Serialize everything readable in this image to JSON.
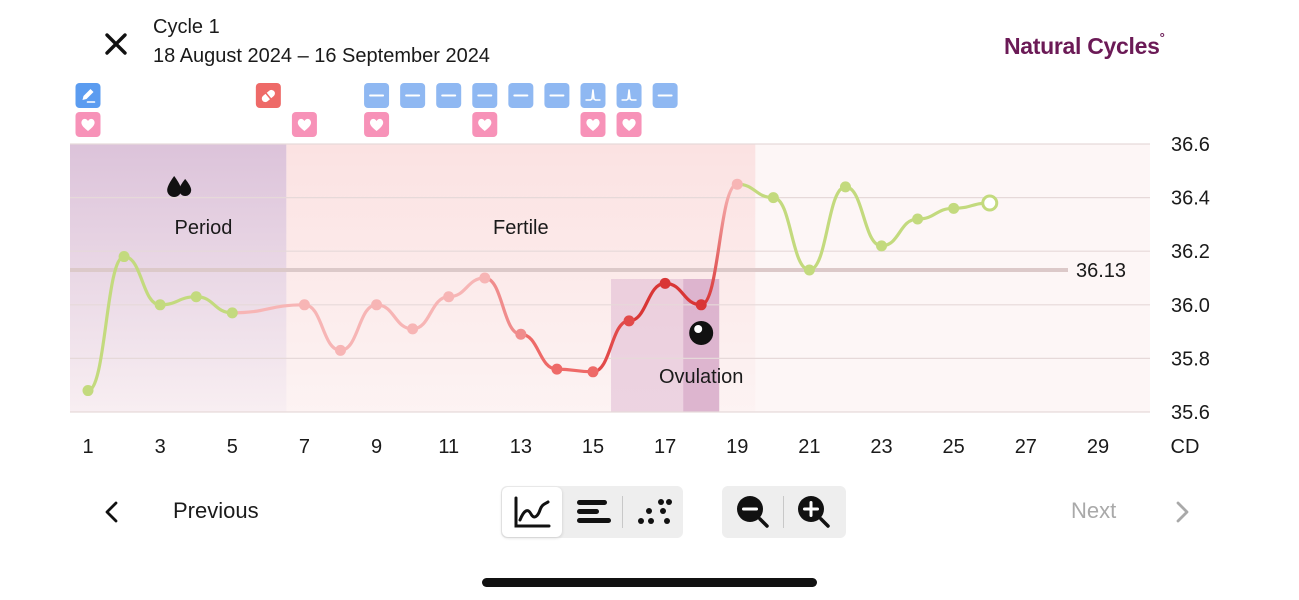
{
  "header": {
    "cycle_title": "Cycle 1",
    "cycle_dates": "18 August 2024 – 16 September 2024",
    "brand_name": "Natural Cycles",
    "brand_mark": "°",
    "close_icon": "close-icon"
  },
  "chart_data": {
    "type": "line",
    "x_label": "CD",
    "x_ticks": [
      "1",
      "3",
      "5",
      "7",
      "9",
      "11",
      "13",
      "15",
      "17",
      "19",
      "21",
      "23",
      "25",
      "27",
      "29"
    ],
    "y_ticks": [
      "36.6",
      "36.4",
      "36.2",
      "36.0",
      "35.8",
      "35.6"
    ],
    "ylim": [
      35.6,
      36.6
    ],
    "xlim": [
      1,
      30
    ],
    "cover_line": {
      "value": 36.13,
      "label": "36.13"
    },
    "phases": [
      {
        "name": "period",
        "label": "Period",
        "from": 1,
        "to": 6.5,
        "color": "#dcc3da"
      },
      {
        "name": "fertile",
        "label": "Fertile",
        "from": 6.5,
        "to": 19.5,
        "color": "#fbe2e2"
      },
      {
        "name": "ovulation",
        "label": "Ovulation",
        "from": 17.5,
        "to": 18.5,
        "color": "#d9aecb"
      }
    ],
    "points": [
      {
        "cd": 1,
        "temp": 35.68,
        "color": "#c3da7e"
      },
      {
        "cd": 2,
        "temp": 36.18,
        "color": "#c3da7e"
      },
      {
        "cd": 3,
        "temp": 36.0,
        "color": "#c3da7e"
      },
      {
        "cd": 4,
        "temp": 36.03,
        "color": "#c3da7e"
      },
      {
        "cd": 5,
        "temp": 35.97,
        "color": "#c3da7e"
      },
      {
        "cd": 7,
        "temp": 36.0,
        "color": "#f7b5b5"
      },
      {
        "cd": 8,
        "temp": 35.83,
        "color": "#f7b5b5"
      },
      {
        "cd": 9,
        "temp": 36.0,
        "color": "#f7b5b5"
      },
      {
        "cd": 10,
        "temp": 35.91,
        "color": "#f7b5b5"
      },
      {
        "cd": 11,
        "temp": 36.03,
        "color": "#f7b5b5"
      },
      {
        "cd": 12,
        "temp": 36.1,
        "color": "#f7b5b5"
      },
      {
        "cd": 13,
        "temp": 35.89,
        "color": "#f08c8c"
      },
      {
        "cd": 14,
        "temp": 35.76,
        "color": "#ee6a68"
      },
      {
        "cd": 15,
        "temp": 35.75,
        "color": "#ee6a68"
      },
      {
        "cd": 16,
        "temp": 35.94,
        "color": "#e24a4a"
      },
      {
        "cd": 17,
        "temp": 36.08,
        "color": "#d93636"
      },
      {
        "cd": 18,
        "temp": 36.0,
        "color": "#d93636"
      },
      {
        "cd": 19,
        "temp": 36.45,
        "color": "#f7b5b5"
      },
      {
        "cd": 20,
        "temp": 36.4,
        "color": "#c3da7e"
      },
      {
        "cd": 21,
        "temp": 36.13,
        "color": "#c3da7e"
      },
      {
        "cd": 22,
        "temp": 36.44,
        "color": "#c3da7e"
      },
      {
        "cd": 23,
        "temp": 36.22,
        "color": "#c3da7e"
      },
      {
        "cd": 24,
        "temp": 36.32,
        "color": "#c3da7e"
      },
      {
        "cd": 25,
        "temp": 36.36,
        "color": "#c3da7e"
      },
      {
        "cd": 26,
        "temp": 36.38,
        "color": "#c3da7e",
        "hollow": true
      }
    ],
    "markers": {
      "period_icon": {
        "name": "drops-icon",
        "cd": 3.5
      },
      "ovulation_icon": {
        "name": "ovulation-egg-icon",
        "cd": 18
      }
    }
  },
  "tags": {
    "row1": [
      {
        "cd": 1,
        "icon": "pen-icon",
        "color": "#5b9cf0"
      },
      {
        "cd": 6,
        "icon": "pill-icon",
        "color": "#ee6a68"
      },
      {
        "cd": 9,
        "icon": "lh-test-negative-icon",
        "color": "#8fb8f2"
      },
      {
        "cd": 10,
        "icon": "lh-test-negative-icon",
        "color": "#8fb8f2"
      },
      {
        "cd": 11,
        "icon": "lh-test-negative-icon",
        "color": "#8fb8f2"
      },
      {
        "cd": 12,
        "icon": "lh-test-negative-icon",
        "color": "#8fb8f2"
      },
      {
        "cd": 13,
        "icon": "lh-test-negative-icon",
        "color": "#8fb8f2"
      },
      {
        "cd": 14,
        "icon": "lh-test-negative-icon",
        "color": "#8fb8f2"
      },
      {
        "cd": 15,
        "icon": "lh-test-positive-icon",
        "color": "#8fb8f2"
      },
      {
        "cd": 16,
        "icon": "lh-test-positive-icon",
        "color": "#8fb8f2"
      },
      {
        "cd": 17,
        "icon": "lh-test-negative-icon",
        "color": "#8fb8f2"
      }
    ],
    "row2": [
      {
        "cd": 1,
        "icon": "heart-icon",
        "color": "#f792b8"
      },
      {
        "cd": 7,
        "icon": "heart-icon",
        "color": "#f792b8"
      },
      {
        "cd": 9,
        "icon": "heart-icon",
        "color": "#f792b8"
      },
      {
        "cd": 12,
        "icon": "heart-icon",
        "color": "#f792b8"
      },
      {
        "cd": 15,
        "icon": "heart-icon",
        "color": "#f792b8"
      },
      {
        "cd": 16,
        "icon": "heart-icon",
        "color": "#f792b8"
      }
    ]
  },
  "navigation": {
    "previous_label": "Previous",
    "next_label": "Next"
  },
  "view_controls": [
    {
      "name": "line-chart-view-icon",
      "active": true
    },
    {
      "name": "bar-view-icon",
      "active": false
    },
    {
      "name": "dots-view-icon",
      "active": false
    }
  ],
  "zoom_controls": [
    {
      "name": "zoom-out-icon"
    },
    {
      "name": "zoom-in-icon"
    }
  ]
}
